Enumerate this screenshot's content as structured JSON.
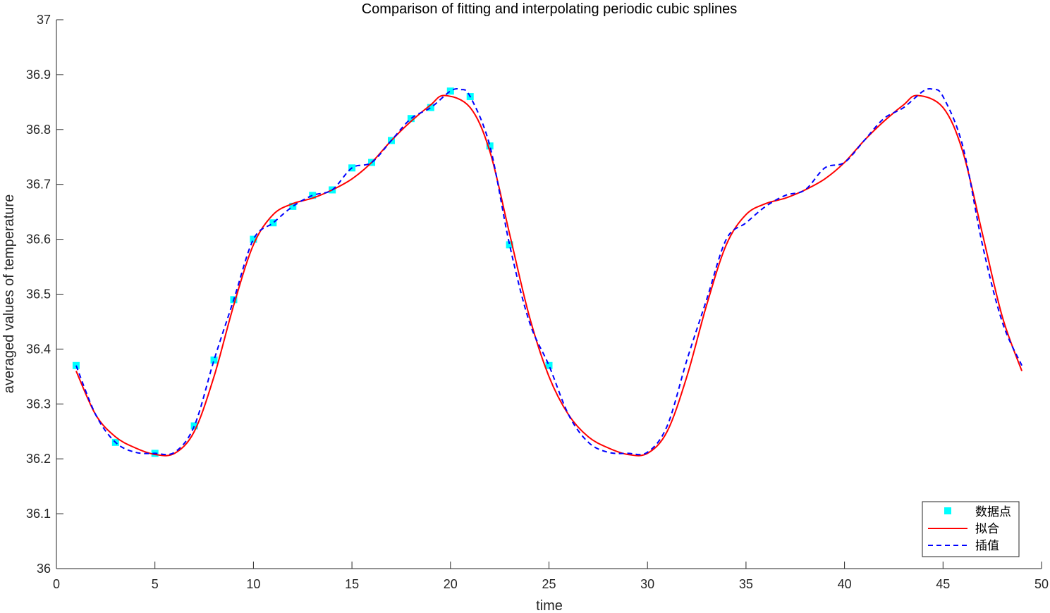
{
  "chart_data": {
    "type": "line",
    "title": "Comparison of fitting and interpolating periodic cubic splines",
    "xlabel": "time",
    "ylabel": "averaged values of temperature",
    "xlim": [
      0,
      50
    ],
    "ylim": [
      36,
      37
    ],
    "xticks": [
      0,
      5,
      10,
      15,
      20,
      25,
      30,
      35,
      40,
      45,
      50
    ],
    "yticks": [
      36,
      36.1,
      36.2,
      36.3,
      36.4,
      36.5,
      36.6,
      36.7,
      36.8,
      36.9,
      37
    ],
    "xtick_labels": [
      "0",
      "5",
      "10",
      "15",
      "20",
      "25",
      "30",
      "35",
      "40",
      "45",
      "50"
    ],
    "ytick_labels": [
      "36",
      "36.1",
      "36.2",
      "36.3",
      "36.4",
      "36.5",
      "36.6",
      "36.7",
      "36.8",
      "36.9",
      "37"
    ],
    "grid": false,
    "legend_position": "bottom-right",
    "series": [
      {
        "name": "数据点",
        "style": "square-markers",
        "color": "#00FFFF",
        "x": [
          1,
          3,
          5,
          7,
          8,
          9,
          10,
          11,
          12,
          13,
          14,
          15,
          16,
          17,
          18,
          19,
          20,
          21,
          22,
          23,
          25
        ],
        "y": [
          36.37,
          36.23,
          36.21,
          36.26,
          36.38,
          36.49,
          36.6,
          36.63,
          36.66,
          36.68,
          36.69,
          36.73,
          36.74,
          36.78,
          36.82,
          36.84,
          36.87,
          36.86,
          36.77,
          36.59,
          36.37
        ]
      },
      {
        "name": "拟合",
        "style": "solid",
        "color": "#FF0000",
        "x": [
          1,
          2,
          3,
          4,
          5,
          6,
          7,
          8,
          9,
          10,
          11,
          12,
          13,
          14,
          15,
          16,
          17,
          18,
          19,
          19.7,
          21,
          22,
          23,
          24,
          25,
          26,
          27,
          28,
          29,
          30,
          31,
          32,
          33,
          34,
          35,
          36,
          37,
          38,
          39,
          40,
          41,
          42,
          43,
          43.7,
          45,
          46,
          47,
          48,
          49
        ],
        "y": [
          36.36,
          36.28,
          36.24,
          36.22,
          36.208,
          36.21,
          36.25,
          36.35,
          36.48,
          36.59,
          36.645,
          36.665,
          36.675,
          36.69,
          36.71,
          36.74,
          36.78,
          36.815,
          36.845,
          36.862,
          36.84,
          36.76,
          36.61,
          36.46,
          36.35,
          36.28,
          36.24,
          36.22,
          36.208,
          36.21,
          36.25,
          36.35,
          36.48,
          36.59,
          36.645,
          36.665,
          36.675,
          36.69,
          36.71,
          36.74,
          36.78,
          36.815,
          36.845,
          36.862,
          36.84,
          36.76,
          36.61,
          36.46,
          36.36
        ]
      },
      {
        "name": "插值",
        "style": "dashed",
        "color": "#0000FF",
        "x": [
          1,
          2,
          3,
          4,
          5,
          6,
          7,
          8,
          9,
          10,
          11,
          12,
          13,
          14,
          15,
          16,
          17,
          18,
          19,
          20,
          20.5,
          21,
          22,
          23,
          24,
          25,
          26,
          27,
          28,
          29,
          30,
          31,
          32,
          33,
          34,
          35,
          36,
          37,
          38,
          39,
          40,
          41,
          42,
          43,
          44,
          44.5,
          45,
          46,
          47,
          48,
          49
        ],
        "y": [
          36.37,
          36.28,
          36.23,
          36.212,
          36.21,
          36.212,
          36.26,
          36.38,
          36.49,
          36.6,
          36.63,
          36.66,
          36.68,
          36.69,
          36.73,
          36.74,
          36.78,
          36.82,
          36.84,
          36.87,
          36.873,
          36.86,
          36.77,
          36.59,
          36.45,
          36.37,
          36.28,
          36.23,
          36.212,
          36.21,
          36.212,
          36.26,
          36.38,
          36.49,
          36.6,
          36.63,
          36.66,
          36.68,
          36.69,
          36.73,
          36.74,
          36.78,
          36.82,
          36.84,
          36.87,
          36.873,
          36.86,
          36.77,
          36.59,
          36.45,
          36.37
        ]
      }
    ]
  }
}
